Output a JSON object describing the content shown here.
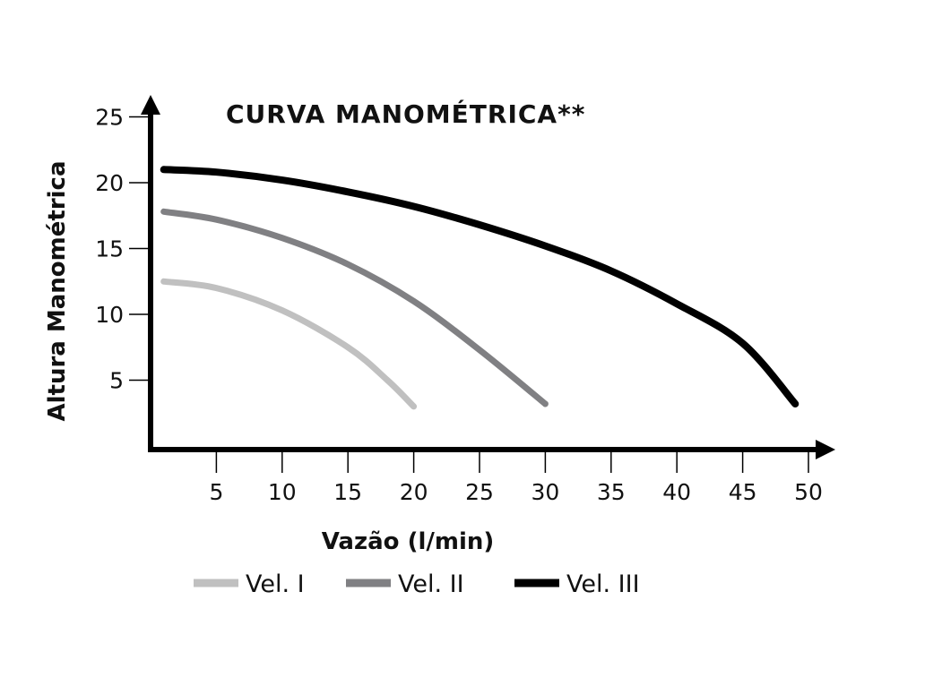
{
  "chart_data": {
    "type": "line",
    "title": "CURVA MANOMÉTRICA**",
    "xlabel": "Vazão (l/min)",
    "ylabel": "Altura Manométrica",
    "xlim": [
      0,
      50
    ],
    "ylim": [
      0,
      25
    ],
    "xticks": [
      5,
      10,
      15,
      20,
      25,
      30,
      35,
      40,
      45,
      50
    ],
    "yticks": [
      5,
      10,
      15,
      20,
      25
    ],
    "grid": false,
    "legend": "bottom",
    "series": [
      {
        "name": "Vel. I",
        "color": "#c0c0c0",
        "points": [
          [
            1,
            12.5
          ],
          [
            5,
            12
          ],
          [
            10,
            10.3
          ],
          [
            15,
            7.5
          ],
          [
            18,
            5
          ],
          [
            20,
            3
          ]
        ]
      },
      {
        "name": "Vel. II",
        "color": "#808083",
        "points": [
          [
            1,
            17.8
          ],
          [
            5,
            17.2
          ],
          [
            10,
            15.8
          ],
          [
            15,
            13.8
          ],
          [
            20,
            11
          ],
          [
            25,
            7.3
          ],
          [
            30,
            3.2
          ]
        ]
      },
      {
        "name": "Vel. III",
        "color": "#000000",
        "points": [
          [
            1,
            21
          ],
          [
            5,
            20.8
          ],
          [
            10,
            20.2
          ],
          [
            15,
            19.3
          ],
          [
            20,
            18.2
          ],
          [
            25,
            16.8
          ],
          [
            30,
            15.2
          ],
          [
            35,
            13.3
          ],
          [
            40,
            10.8
          ],
          [
            45,
            7.8
          ],
          [
            49,
            3.2
          ]
        ]
      }
    ]
  }
}
